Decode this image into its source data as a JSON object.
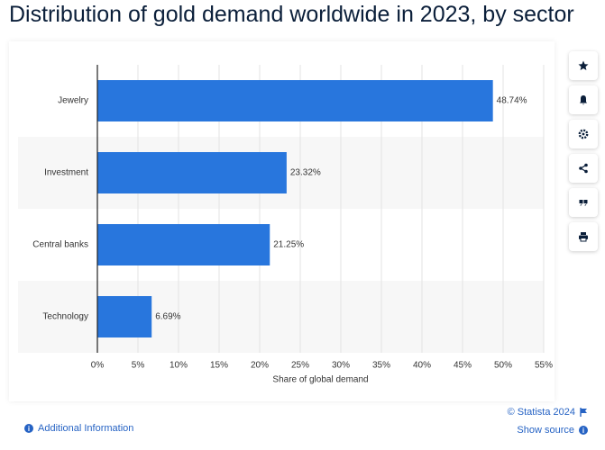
{
  "chart_data": {
    "type": "bar",
    "orientation": "horizontal",
    "title": "Distribution of gold demand worldwide in 2023, by sector",
    "x_label": "Share of global demand",
    "categories": [
      "Jewelry",
      "Investment",
      "Central banks",
      "Technology"
    ],
    "values": [
      48.74,
      23.32,
      21.25,
      6.69
    ],
    "value_labels": [
      "48.74%",
      "23.32%",
      "21.25%",
      "6.69%"
    ],
    "color": "#2876dd",
    "xlim": [
      0,
      55
    ],
    "xticks": [
      {
        "value": 0,
        "label": "0%"
      },
      {
        "value": 5,
        "label": "5%"
      },
      {
        "value": 10,
        "label": "10%"
      },
      {
        "value": 15,
        "label": "15%"
      },
      {
        "value": 20,
        "label": "20%"
      },
      {
        "value": 25,
        "label": "25%"
      },
      {
        "value": 30,
        "label": "30%"
      },
      {
        "value": 35,
        "label": "35%"
      },
      {
        "value": 40,
        "label": "40%"
      },
      {
        "value": 45,
        "label": "45%"
      },
      {
        "value": 50,
        "label": "50%"
      },
      {
        "value": 55,
        "label": "55%"
      }
    ],
    "grid": true
  },
  "links": {
    "additional_info": "Additional Information",
    "copyright": "© Statista 2024",
    "show_source": "Show source"
  }
}
